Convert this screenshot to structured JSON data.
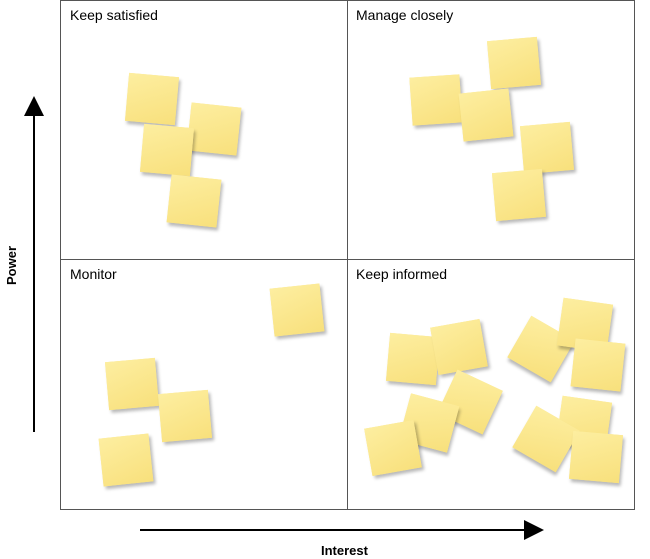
{
  "quadrants": {
    "top_left": "Keep satisfied",
    "top_right": "Manage closely",
    "bottom_left": "Monitor",
    "bottom_right": "Keep informed"
  },
  "axes": {
    "y_label": "Power",
    "x_label": "Interest"
  },
  "colors": {
    "note": "#fbe68a",
    "border": "#555555",
    "arrow": "#000000"
  },
  "note_counts": {
    "top_left": 4,
    "top_right": 5,
    "bottom_left": 4,
    "bottom_right": 12
  }
}
